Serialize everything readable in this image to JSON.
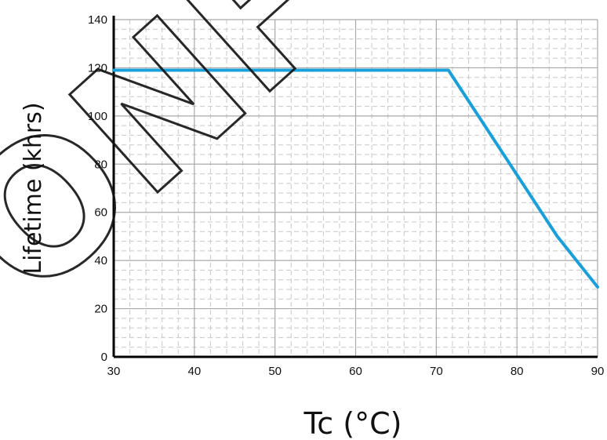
{
  "chart_data": {
    "type": "line",
    "xlabel": "Tc (°C)",
    "ylabel": "Lifetime (khrs)",
    "xlim": [
      30,
      90
    ],
    "ylim": [
      0,
      140
    ],
    "x_ticks": [
      30,
      40,
      50,
      60,
      70,
      80,
      90
    ],
    "y_ticks": [
      0,
      20,
      40,
      60,
      80,
      100,
      120,
      140
    ],
    "grid": "major solid, minor dashed",
    "line_color": "#1a9fd9",
    "series": [
      {
        "x": [
          30,
          71.5,
          85,
          90
        ],
        "y": [
          119,
          119,
          50,
          29
        ]
      }
    ]
  },
  "watermark": {
    "text": "ONFIRM"
  }
}
